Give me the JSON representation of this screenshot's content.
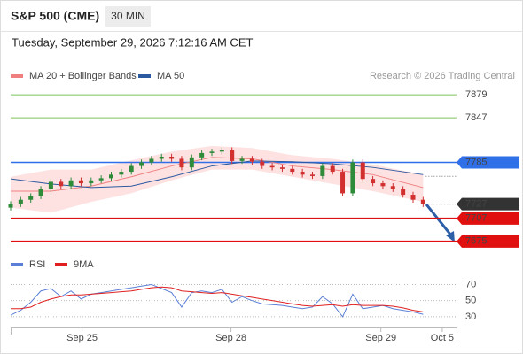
{
  "header": {
    "symbol": "S&P 500 (CME)",
    "timeframe": "30 MIN",
    "datetime": "Tuesday, September 29, 2026 7:12:16 AM CET",
    "attribution": "Research © 2026 Trading Central"
  },
  "chart_data": [
    {
      "type": "candlestick",
      "xlim": [
        0,
        44
      ],
      "ylim": [
        7660,
        7894
      ],
      "up_color": "#2e8b3a",
      "down_color": "#d22f2f",
      "open": [
        7722,
        7727,
        7733,
        7738,
        7748,
        7758,
        7752,
        7760,
        7756,
        7760,
        7763,
        7768,
        7772,
        7780,
        7785,
        7790,
        7793,
        7790,
        7778,
        7792,
        7798,
        7800,
        7802,
        7787,
        7790,
        7786,
        7780,
        7778,
        7776,
        7772,
        7768,
        7766,
        7780,
        7772,
        7742,
        7785,
        7762,
        7756,
        7752,
        7748,
        7740,
        7733
      ],
      "high": [
        7731,
        7737,
        7742,
        7752,
        7762,
        7762,
        7764,
        7764,
        7764,
        7767,
        7772,
        7776,
        7784,
        7789,
        7794,
        7797,
        7797,
        7794,
        7796,
        7802,
        7804,
        7806,
        7806,
        7794,
        7794,
        7790,
        7784,
        7782,
        7780,
        7776,
        7772,
        7784,
        7784,
        7776,
        7789,
        7789,
        7766,
        7760,
        7756,
        7752,
        7744,
        7737
      ],
      "low": [
        7718,
        7723,
        7729,
        7734,
        7744,
        7748,
        7748,
        7752,
        7752,
        7756,
        7759,
        7764,
        7768,
        7776,
        7781,
        7786,
        7786,
        7774,
        7774,
        7788,
        7794,
        7796,
        7783,
        7783,
        7782,
        7776,
        7774,
        7772,
        7768,
        7764,
        7762,
        7762,
        7768,
        7738,
        7738,
        7758,
        7752,
        7748,
        7744,
        7736,
        7729,
        7723
      ],
      "close": [
        7727,
        7733,
        7738,
        7748,
        7758,
        7752,
        7760,
        7756,
        7760,
        7763,
        7768,
        7772,
        7780,
        7785,
        7790,
        7793,
        7790,
        7778,
        7792,
        7798,
        7800,
        7802,
        7787,
        7790,
        7786,
        7780,
        7778,
        7776,
        7772,
        7768,
        7766,
        7780,
        7772,
        7742,
        7785,
        7762,
        7756,
        7752,
        7748,
        7740,
        7733,
        7727
      ],
      "series_x": [
        0,
        4,
        8,
        12,
        16,
        20,
        24,
        28,
        32,
        36,
        41
      ],
      "series": [
        {
          "name": "MA 20 + Bollinger Bands",
          "color": "#f08080",
          "band_color": "#fdd8d8",
          "values": [
            7745,
            7745,
            7752,
            7765,
            7780,
            7792,
            7790,
            7780,
            7775,
            7768,
            7750
          ],
          "upper": [
            7765,
            7775,
            7775,
            7788,
            7800,
            7808,
            7805,
            7795,
            7790,
            7782,
            7768
          ],
          "lower": [
            7722,
            7715,
            7730,
            7742,
            7760,
            7775,
            7775,
            7765,
            7755,
            7745,
            7730
          ]
        },
        {
          "name": "MA 50",
          "color": "#2c5aa0",
          "values": [
            7762,
            7755,
            7750,
            7752,
            7765,
            7780,
            7787,
            7786,
            7783,
            7778,
            7768
          ]
        }
      ],
      "levels": [
        {
          "value": 7879,
          "color": "#7cc45a",
          "style": "line"
        },
        {
          "value": 7847,
          "color": "#7cc45a",
          "style": "line"
        },
        {
          "value": 7785,
          "color": "#2f6fe8",
          "style": "box"
        },
        {
          "value": 7727,
          "color": "#333333",
          "style": "current"
        },
        {
          "value": 7707,
          "color": "#e01010",
          "style": "box"
        },
        {
          "value": 7675,
          "color": "#e01010",
          "style": "box"
        }
      ]
    },
    {
      "type": "line",
      "xlim": [
        0,
        44
      ],
      "ylim": [
        20,
        76
      ],
      "yticks": [
        30,
        50,
        70
      ],
      "xticks": [
        {
          "value": 7.1,
          "label": "Sep 25"
        },
        {
          "value": 21.9,
          "label": "Sep 28"
        },
        {
          "value": 36.8,
          "label": "Sep 29"
        },
        {
          "value": 42.9,
          "label": "Oct 5"
        }
      ],
      "series": [
        {
          "name": "RSI",
          "color": "#5b7fd6",
          "values": [
            32,
            38,
            48,
            62,
            65,
            55,
            62,
            52,
            58,
            60,
            62,
            64,
            66,
            68,
            70,
            65,
            60,
            42,
            60,
            62,
            60,
            64,
            48,
            55,
            50,
            46,
            45,
            44,
            42,
            40,
            42,
            55,
            46,
            30,
            58,
            40,
            42,
            44,
            40,
            38,
            36,
            33
          ]
        },
        {
          "name": "9MA",
          "color": "#e02020",
          "values": [
            40,
            40,
            42,
            48,
            52,
            55,
            57,
            57,
            58,
            59,
            60,
            61,
            62,
            64,
            66,
            67,
            66,
            62,
            61,
            60,
            59,
            60,
            58,
            56,
            54,
            52,
            50,
            48,
            46,
            44,
            43,
            44,
            45,
            43,
            45,
            44,
            44,
            44,
            43,
            41,
            38,
            36
          ]
        }
      ]
    }
  ]
}
